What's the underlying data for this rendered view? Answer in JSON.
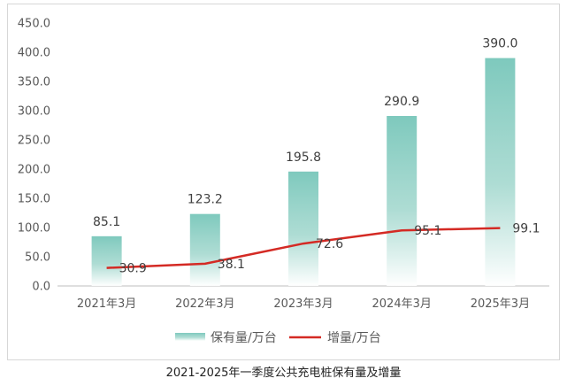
{
  "caption": "2021-2025年一季度公共充电桩保有量及增量",
  "chart_data": {
    "type": "bar",
    "categories": [
      "2021年3月",
      "2022年3月",
      "2023年3月",
      "2024年3月",
      "2025年3月"
    ],
    "series": [
      {
        "name": "保有量/万台",
        "type": "bar",
        "color": "#7ec9bd",
        "values": [
          85.1,
          123.2,
          195.8,
          290.9,
          390.0
        ],
        "labels": [
          "85.1",
          "123.2",
          "195.8",
          "290.9",
          "390.0"
        ]
      },
      {
        "name": "增量/万台",
        "type": "line",
        "color": "#d42a24",
        "values": [
          30.9,
          38.1,
          72.6,
          95.1,
          99.1
        ],
        "labels": [
          "30.9",
          "38.1",
          "72.6",
          "95.1",
          "99.1"
        ]
      }
    ],
    "ylim": [
      0,
      450
    ],
    "yticks": [
      "0.0",
      "50.0",
      "100.0",
      "150.0",
      "200.0",
      "250.0",
      "300.0",
      "350.0",
      "400.0",
      "450.0"
    ],
    "legend_position": "bottom",
    "grid": false
  }
}
